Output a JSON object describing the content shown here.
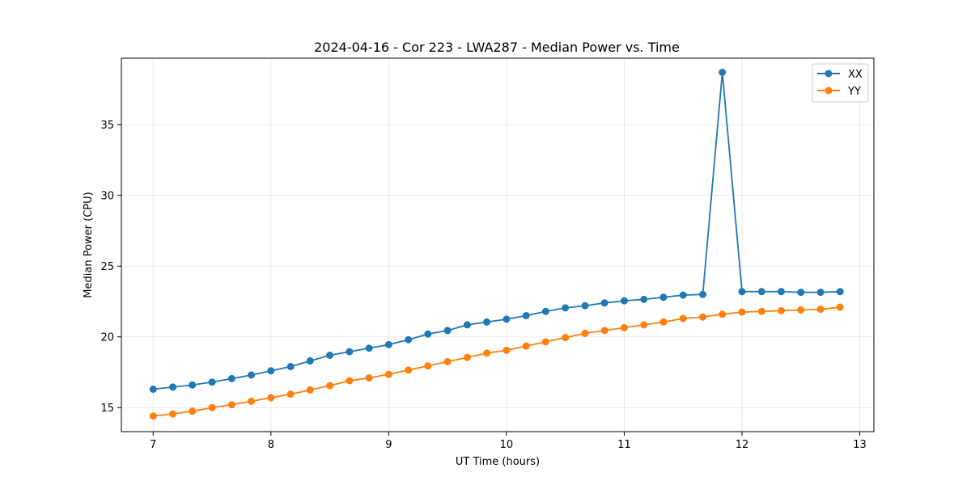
{
  "chart_data": {
    "type": "line",
    "title": "2024-04-16 - Cor 223 - LWA287 - Median Power vs. Time",
    "xlabel": "UT Time (hours)",
    "ylabel": "Median Power (CPU)",
    "xlim": [
      6.73,
      13.12
    ],
    "ylim": [
      13.3,
      39.7
    ],
    "xticks": [
      7,
      8,
      9,
      10,
      11,
      12,
      13
    ],
    "yticks": [
      15,
      20,
      25,
      30,
      35
    ],
    "grid": true,
    "legend_position": "top-right",
    "x": [
      7.0,
      7.167,
      7.333,
      7.5,
      7.667,
      7.833,
      8.0,
      8.167,
      8.333,
      8.5,
      8.667,
      8.833,
      9.0,
      9.167,
      9.333,
      9.5,
      9.667,
      9.833,
      10.0,
      10.167,
      10.333,
      10.5,
      10.667,
      10.833,
      11.0,
      11.167,
      11.333,
      11.5,
      11.667,
      11.833,
      12.0,
      12.167,
      12.333,
      12.5,
      12.667,
      12.833
    ],
    "series": [
      {
        "name": "XX",
        "color": "#1f77b4",
        "values": [
          16.3,
          16.45,
          16.6,
          16.8,
          17.05,
          17.3,
          17.6,
          17.9,
          18.3,
          18.7,
          18.95,
          19.2,
          19.45,
          19.8,
          20.2,
          20.45,
          20.85,
          21.05,
          21.25,
          21.5,
          21.8,
          22.05,
          22.2,
          22.4,
          22.55,
          22.65,
          22.8,
          22.95,
          23.0,
          38.7,
          23.2,
          23.2,
          23.2,
          23.15,
          23.15,
          23.2
        ]
      },
      {
        "name": "YY",
        "color": "#ff7f0e",
        "values": [
          14.4,
          14.55,
          14.75,
          15.0,
          15.2,
          15.45,
          15.7,
          15.95,
          16.25,
          16.55,
          16.9,
          17.1,
          17.35,
          17.65,
          17.95,
          18.25,
          18.55,
          18.85,
          19.05,
          19.35,
          19.65,
          19.95,
          20.25,
          20.45,
          20.65,
          20.85,
          21.05,
          21.3,
          21.4,
          21.6,
          21.75,
          21.8,
          21.85,
          21.9,
          21.95,
          22.1
        ]
      }
    ]
  }
}
